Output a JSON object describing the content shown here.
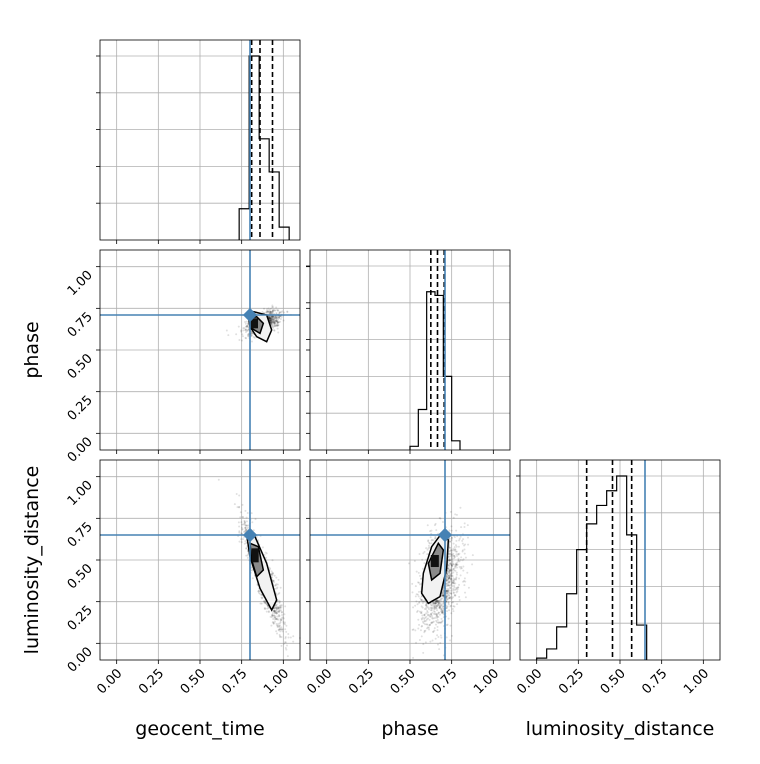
{
  "chart_data": {
    "type": "corner",
    "parameters": [
      "geocent_time",
      "phase",
      "luminosity_distance"
    ],
    "axis_range": [
      -0.1,
      1.1
    ],
    "ticks": [
      0.0,
      0.25,
      0.5,
      0.75,
      1.0
    ],
    "tick_labels": [
      "0.00",
      "0.25",
      "0.50",
      "0.75",
      "1.00"
    ],
    "grid": true,
    "truths": {
      "geocent_time": 0.8,
      "phase": 0.71,
      "luminosity_distance": 0.65
    },
    "truth_color": "#4682b4",
    "hist_color": "#000000",
    "histograms": [
      {
        "parameter": "geocent_time",
        "bin_edges": [
          0.735,
          0.795,
          0.855,
          0.915,
          0.975,
          1.035
        ],
        "counts": [
          0.17,
          1.0,
          0.55,
          0.37,
          0.07
        ],
        "quantiles": [
          0.81,
          0.86,
          0.935
        ]
      },
      {
        "parameter": "phase",
        "bin_edges": [
          0.5,
          0.55,
          0.6,
          0.65,
          0.7,
          0.75,
          0.8
        ],
        "counts": [
          0.02,
          0.22,
          0.86,
          0.84,
          0.4,
          0.05
        ],
        "quantiles": [
          0.625,
          0.665,
          0.705
        ]
      },
      {
        "parameter": "luminosity_distance",
        "bin_edges": [
          0.0,
          0.06,
          0.12,
          0.18,
          0.24,
          0.3,
          0.36,
          0.42,
          0.48,
          0.54,
          0.6,
          0.66
        ],
        "counts": [
          0.01,
          0.06,
          0.18,
          0.36,
          0.6,
          0.74,
          0.84,
          0.92,
          1.0,
          0.68,
          0.19
        ],
        "quantiles": [
          0.3,
          0.455,
          0.57
        ]
      }
    ],
    "scatter_panels": [
      {
        "x": "geocent_time",
        "y": "phase"
      },
      {
        "x": "geocent_time",
        "y": "luminosity_distance"
      },
      {
        "x": "phase",
        "y": "luminosity_distance"
      }
    ]
  }
}
